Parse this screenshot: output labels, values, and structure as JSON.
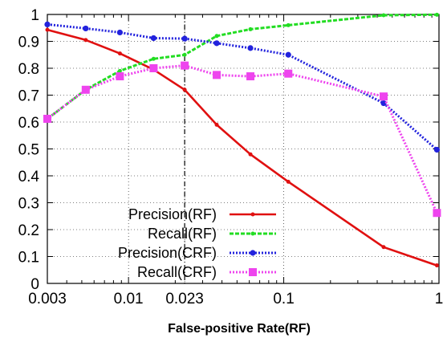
{
  "chart_data": {
    "type": "line",
    "title": "",
    "xlabel": "False-positive Rate(RF)",
    "ylabel": "",
    "x_scale": "log",
    "xlim": [
      0.003,
      1
    ],
    "ylim": [
      0,
      1
    ],
    "x_ticks": [
      0.003,
      0.01,
      0.023,
      0.1,
      1
    ],
    "x_tick_labels": [
      "0.003",
      "0.01",
      "0.023",
      "0.1",
      "1"
    ],
    "y_ticks": [
      0,
      0.1,
      0.2,
      0.3,
      0.4,
      0.5,
      0.6,
      0.7,
      0.8,
      0.9,
      1
    ],
    "y_tick_labels": [
      "0",
      "0.1",
      "0.2",
      "0.3",
      "0.4",
      "0.5",
      "0.6",
      "0.7",
      "0.8",
      "0.9",
      "1"
    ],
    "grid": true,
    "reference_line_x": 0.023,
    "legend_position": "bottom-left",
    "series": [
      {
        "name": "Precision(RF)",
        "color": "#e01010",
        "dash": "solid",
        "marker": "small-dot",
        "x": [
          0.003,
          0.0053,
          0.0088,
          0.0145,
          0.023,
          0.037,
          0.061,
          0.107,
          0.44,
          0.97
        ],
        "y": [
          0.943,
          0.905,
          0.855,
          0.795,
          0.72,
          0.59,
          0.48,
          0.378,
          0.135,
          0.067
        ]
      },
      {
        "name": "Recall(RF)",
        "color": "#22dd22",
        "dash": "dashed",
        "marker": "small-dot",
        "x": [
          0.003,
          0.0053,
          0.0088,
          0.0145,
          0.023,
          0.037,
          0.061,
          0.107,
          0.44,
          0.97
        ],
        "y": [
          0.612,
          0.72,
          0.79,
          0.835,
          0.85,
          0.92,
          0.945,
          0.96,
          0.997,
          0.999
        ]
      },
      {
        "name": "Precision(CRF)",
        "color": "#2222dd",
        "dash": "dotted",
        "marker": "dot",
        "x": [
          0.003,
          0.0053,
          0.0088,
          0.0145,
          0.023,
          0.037,
          0.061,
          0.107,
          0.44,
          0.97
        ],
        "y": [
          0.963,
          0.948,
          0.933,
          0.912,
          0.91,
          0.893,
          0.875,
          0.85,
          0.67,
          0.497
        ]
      },
      {
        "name": "Recall(CRF)",
        "color": "#ee44ee",
        "dash": "dotted",
        "marker": "square",
        "x": [
          0.003,
          0.0053,
          0.0088,
          0.0145,
          0.023,
          0.037,
          0.061,
          0.107,
          0.44,
          0.97
        ],
        "y": [
          0.612,
          0.72,
          0.77,
          0.8,
          0.81,
          0.775,
          0.77,
          0.78,
          0.695,
          0.262
        ]
      }
    ]
  }
}
